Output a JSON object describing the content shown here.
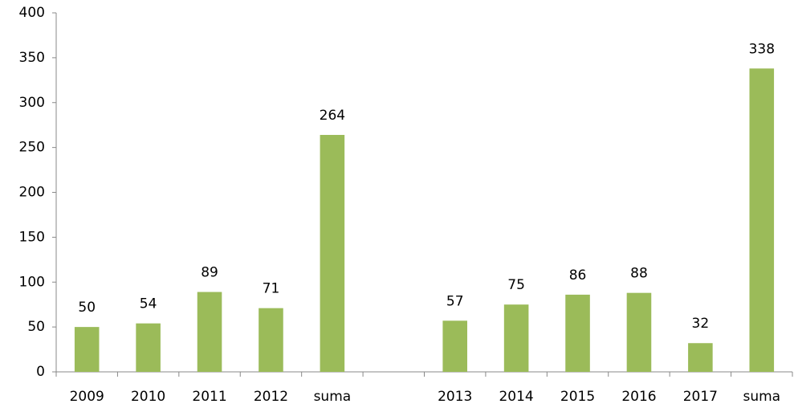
{
  "chart_data": {
    "type": "bar",
    "categories": [
      "2009",
      "2010",
      "2011",
      "2012",
      "suma",
      null,
      "2013",
      "2014",
      "2015",
      "2016",
      "2017",
      "suma"
    ],
    "values": [
      50,
      54,
      89,
      71,
      264,
      null,
      57,
      75,
      86,
      88,
      32,
      338
    ],
    "color": "#9bbb59",
    "ylim": [
      0,
      400
    ],
    "yticks": [
      0,
      50,
      100,
      150,
      200,
      250,
      300,
      350,
      400
    ],
    "grid": false,
    "data_labels": true
  }
}
